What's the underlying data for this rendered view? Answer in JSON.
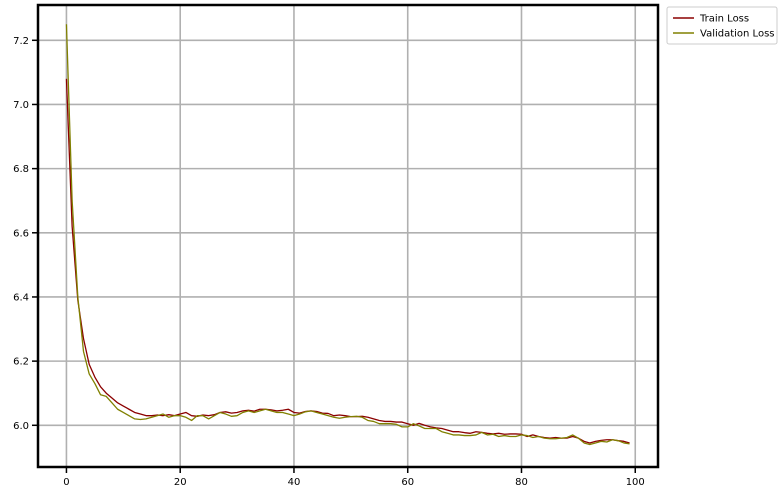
{
  "chart_data": {
    "type": "line",
    "title": "",
    "xlabel": "",
    "ylabel": "",
    "xlim": [
      -5,
      104
    ],
    "ylim": [
      5.87,
      7.31
    ],
    "xticks": [
      0,
      20,
      40,
      60,
      80,
      100
    ],
    "yticks": [
      6.0,
      6.2,
      6.4,
      6.6,
      6.8,
      7.0,
      7.2
    ],
    "grid": true,
    "legend_position": "outside-top-right",
    "series": [
      {
        "name": "Train Loss",
        "color": "#8b0000",
        "x": [
          0,
          1,
          2,
          3,
          4,
          5,
          6,
          7,
          8,
          9,
          10,
          11,
          12,
          13,
          14,
          15,
          16,
          17,
          18,
          19,
          20,
          21,
          22,
          23,
          24,
          25,
          26,
          27,
          28,
          29,
          30,
          31,
          32,
          33,
          34,
          35,
          36,
          37,
          38,
          39,
          40,
          41,
          42,
          43,
          44,
          45,
          46,
          47,
          48,
          49,
          50,
          51,
          52,
          53,
          54,
          55,
          56,
          57,
          58,
          59,
          60,
          61,
          62,
          63,
          64,
          65,
          66,
          67,
          68,
          69,
          70,
          71,
          72,
          73,
          74,
          75,
          76,
          77,
          78,
          79,
          80,
          81,
          82,
          83,
          84,
          85,
          86,
          87,
          88,
          89,
          90,
          91,
          92,
          93,
          94,
          95,
          96,
          97,
          98,
          99
        ],
        "values": [
          7.08,
          6.62,
          6.39,
          6.27,
          6.19,
          6.15,
          6.12,
          6.1,
          6.085,
          6.07,
          6.06,
          6.05,
          6.04,
          6.035,
          6.03,
          6.03,
          6.032,
          6.03,
          6.033,
          6.03,
          6.035,
          6.04,
          6.03,
          6.028,
          6.032,
          6.03,
          6.033,
          6.04,
          6.042,
          6.038,
          6.04,
          6.045,
          6.047,
          6.044,
          6.05,
          6.05,
          6.048,
          6.045,
          6.047,
          6.05,
          6.04,
          6.038,
          6.043,
          6.045,
          6.043,
          6.038,
          6.037,
          6.03,
          6.032,
          6.03,
          6.027,
          6.027,
          6.028,
          6.025,
          6.02,
          6.015,
          6.012,
          6.012,
          6.01,
          6.01,
          6.005,
          6.0,
          6.006,
          6.0,
          5.995,
          5.992,
          5.99,
          5.985,
          5.98,
          5.98,
          5.977,
          5.975,
          5.98,
          5.978,
          5.975,
          5.973,
          5.975,
          5.972,
          5.973,
          5.973,
          5.972,
          5.965,
          5.97,
          5.965,
          5.962,
          5.96,
          5.962,
          5.96,
          5.96,
          5.965,
          5.96,
          5.95,
          5.945,
          5.95,
          5.953,
          5.955,
          5.955,
          5.952,
          5.95,
          5.945
        ]
      },
      {
        "name": "Validation Loss",
        "color": "#808000",
        "x": [
          0,
          1,
          2,
          3,
          4,
          5,
          6,
          7,
          8,
          9,
          10,
          11,
          12,
          13,
          14,
          15,
          16,
          17,
          18,
          19,
          20,
          21,
          22,
          23,
          24,
          25,
          26,
          27,
          28,
          29,
          30,
          31,
          32,
          33,
          34,
          35,
          36,
          37,
          38,
          39,
          40,
          41,
          42,
          43,
          44,
          45,
          46,
          47,
          48,
          49,
          50,
          51,
          52,
          53,
          54,
          55,
          56,
          57,
          58,
          59,
          60,
          61,
          62,
          63,
          64,
          65,
          66,
          67,
          68,
          69,
          70,
          71,
          72,
          73,
          74,
          75,
          76,
          77,
          78,
          79,
          80,
          81,
          82,
          83,
          84,
          85,
          86,
          87,
          88,
          89,
          90,
          91,
          92,
          93,
          94,
          95,
          96,
          97,
          98,
          99
        ],
        "values": [
          7.25,
          6.7,
          6.4,
          6.23,
          6.16,
          6.13,
          6.095,
          6.09,
          6.07,
          6.05,
          6.04,
          6.03,
          6.02,
          6.018,
          6.02,
          6.025,
          6.03,
          6.035,
          6.025,
          6.03,
          6.03,
          6.025,
          6.015,
          6.03,
          6.03,
          6.02,
          6.03,
          6.04,
          6.035,
          6.028,
          6.03,
          6.04,
          6.045,
          6.04,
          6.045,
          6.05,
          6.045,
          6.04,
          6.04,
          6.035,
          6.03,
          6.035,
          6.042,
          6.045,
          6.04,
          6.035,
          6.03,
          6.025,
          6.022,
          6.025,
          6.027,
          6.028,
          6.025,
          6.015,
          6.012,
          6.005,
          6.005,
          6.005,
          6.003,
          5.995,
          5.995,
          6.005,
          5.998,
          5.99,
          5.99,
          5.99,
          5.98,
          5.975,
          5.97,
          5.97,
          5.968,
          5.968,
          5.97,
          5.978,
          5.97,
          5.972,
          5.965,
          5.968,
          5.965,
          5.965,
          5.97,
          5.968,
          5.962,
          5.965,
          5.96,
          5.958,
          5.958,
          5.96,
          5.962,
          5.97,
          5.96,
          5.945,
          5.94,
          5.945,
          5.95,
          5.948,
          5.955,
          5.952,
          5.945,
          5.942
        ]
      }
    ]
  }
}
